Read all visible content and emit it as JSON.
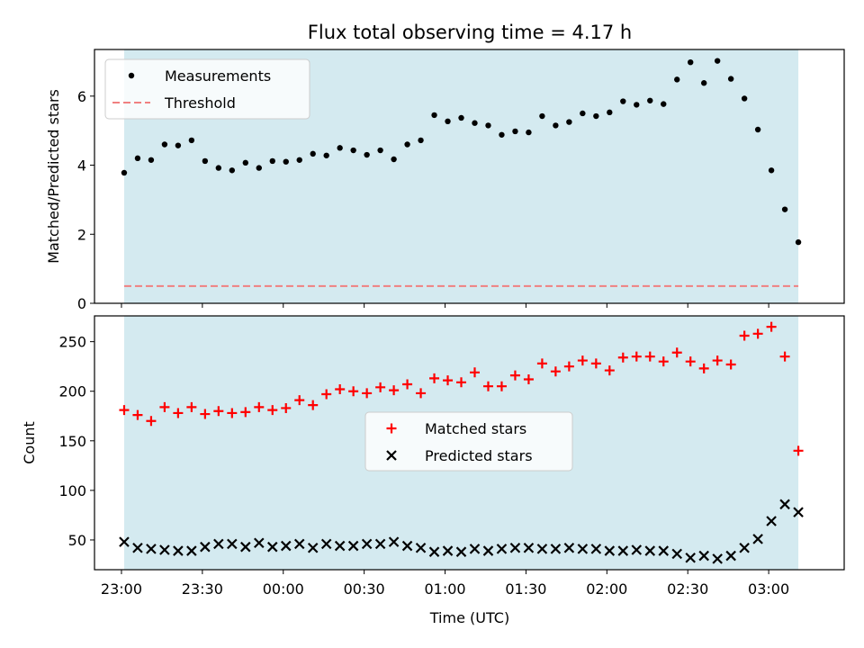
{
  "chart_data": {
    "title": "Flux total observing time = 4.17 h",
    "xlabel": "Time (UTC)",
    "x_tick_labels": [
      "23:00",
      "23:30",
      "00:00",
      "00:30",
      "01:00",
      "01:30",
      "02:00",
      "02:30",
      "03:00"
    ],
    "x_tick_minutes": [
      0,
      30,
      60,
      90,
      120,
      150,
      180,
      210,
      240
    ],
    "x_range_minutes": [
      -10,
      268
    ],
    "observing_window_minutes": [
      1,
      251
    ],
    "shade_color": "#d4eaf0",
    "panels": [
      {
        "type": "scatter",
        "ylabel": "Matched/Predicted stars",
        "ylim": [
          0,
          7.35
        ],
        "yticks": [
          0,
          2,
          4,
          6
        ],
        "legend": {
          "placement": "upper-left",
          "entries": [
            "Measurements",
            "Threshold"
          ]
        },
        "series": [
          {
            "name": "Measurements",
            "marker": "dot",
            "color": "#000000",
            "x": [
              1,
              6,
              11,
              16,
              21,
              26,
              31,
              36,
              41,
              46,
              51,
              56,
              61,
              66,
              71,
              76,
              81,
              86,
              91,
              96,
              101,
              106,
              111,
              116,
              121,
              126,
              131,
              136,
              141,
              146,
              151,
              156,
              161,
              166,
              171,
              176,
              181,
              186,
              191,
              196,
              201,
              206,
              211,
              216,
              221,
              226,
              231,
              236,
              241,
              246,
              251
            ],
            "y": [
              3.78,
              4.2,
              4.15,
              4.6,
              4.57,
              4.72,
              4.12,
              3.92,
              3.85,
              4.07,
              3.92,
              4.12,
              4.1,
              4.15,
              4.33,
              4.28,
              4.5,
              4.43,
              4.3,
              4.43,
              4.17,
              4.6,
              4.72,
              5.45,
              5.27,
              5.37,
              5.22,
              5.15,
              4.88,
              4.98,
              4.95,
              5.42,
              5.15,
              5.25,
              5.5,
              5.42,
              5.53,
              5.85,
              5.75,
              5.87,
              5.77,
              6.48,
              6.98,
              6.38,
              7.02,
              6.5,
              5.93,
              5.03,
              3.85,
              2.72,
              1.77
            ]
          },
          {
            "name": "Threshold",
            "line_style": "dashed",
            "color": "#f08080",
            "x": [
              1,
              251
            ],
            "y": [
              0.5,
              0.5
            ]
          }
        ]
      },
      {
        "type": "scatter",
        "ylabel": "Count",
        "ylim": [
          20,
          276
        ],
        "yticks": [
          50,
          100,
          150,
          200,
          250
        ],
        "legend": {
          "placement": "center",
          "entries": [
            "Matched stars",
            "Predicted stars"
          ]
        },
        "series": [
          {
            "name": "Matched stars",
            "marker": "plus",
            "color": "#ff0000",
            "x": [
              1,
              6,
              11,
              16,
              21,
              26,
              31,
              36,
              41,
              46,
              51,
              56,
              61,
              66,
              71,
              76,
              81,
              86,
              91,
              96,
              101,
              106,
              111,
              116,
              121,
              126,
              131,
              136,
              141,
              146,
              151,
              156,
              161,
              166,
              171,
              176,
              181,
              186,
              191,
              196,
              201,
              206,
              211,
              216,
              221,
              226,
              231,
              236,
              241,
              246,
              251
            ],
            "y": [
              181,
              176,
              170,
              184,
              178,
              184,
              177,
              180,
              178,
              179,
              184,
              181,
              183,
              191,
              186,
              197,
              202,
              200,
              198,
              204,
              201,
              207,
              198,
              213,
              211,
              209,
              219,
              205,
              205,
              216,
              212,
              228,
              220,
              225,
              231,
              228,
              221,
              234,
              235,
              235,
              230,
              239,
              230,
              223,
              231,
              227,
              256,
              258,
              265,
              235,
              140
            ]
          },
          {
            "name": "Predicted stars",
            "marker": "x",
            "color": "#000000",
            "x": [
              1,
              6,
              11,
              16,
              21,
              26,
              31,
              36,
              41,
              46,
              51,
              56,
              61,
              66,
              71,
              76,
              81,
              86,
              91,
              96,
              101,
              106,
              111,
              116,
              121,
              126,
              131,
              136,
              141,
              146,
              151,
              156,
              161,
              166,
              171,
              176,
              181,
              186,
              191,
              196,
              201,
              206,
              211,
              216,
              221,
              226,
              231,
              236,
              241,
              246,
              251
            ],
            "y": [
              48,
              42,
              41,
              40,
              39,
              39,
              43,
              46,
              46,
              43,
              47,
              43,
              44,
              46,
              42,
              46,
              44,
              44,
              46,
              46,
              48,
              44,
              42,
              38,
              39,
              38,
              41,
              39,
              41,
              42,
              42,
              41,
              41,
              42,
              41,
              41,
              39,
              39,
              40,
              39,
              39,
              36,
              32,
              34,
              31,
              34,
              42,
              51,
              69,
              86,
              78
            ]
          }
        ]
      }
    ]
  }
}
